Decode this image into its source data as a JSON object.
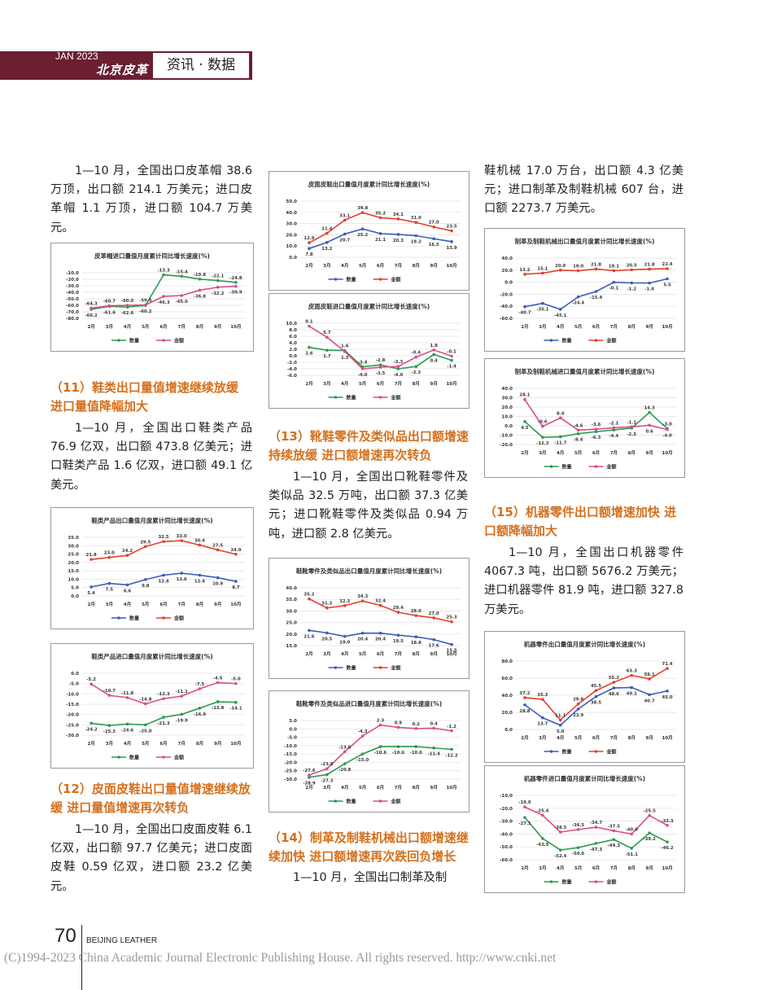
{
  "header": {
    "issue": "JAN 2023",
    "logo": "北京皮革",
    "section": "资讯 · 数据"
  },
  "left": {
    "p1": "1—10 月，全国出口皮革帽 38.6 万顶，出口额 214.1 万美元；进口皮革帽 1.1 万顶，进口额 104.7 万美元。",
    "h11": "（11）鞋类出口量值增速继续放缓 进口量值降幅加大",
    "p11": "1—10 月，全国出口鞋类产品 76.9 亿双，出口额 473.8 亿美元；进口鞋类产品 1.6 亿双，进口额 49.1 亿美元。",
    "h12": "（12）皮面皮鞋出口量值增速继续放缓 进口量值增速再次转负",
    "p12": "1—10 月，全国出口皮面皮鞋 6.1 亿双，出口额 97.7 亿美元；进口皮面皮鞋 0.59 亿双，进口额 23.2 亿美元。"
  },
  "middle": {
    "h13": "（13）靴鞋零件及类似品出口额增速持续放缓 进口额增速再次转负",
    "p13": "1—10 月，全国出口靴鞋零件及类似品 32.5 万吨，出口额 37.3 亿美元；进口靴鞋零件及类似品 0.94 万吨，进口额 2.8 亿美元。",
    "h14": "（14）制革及制鞋机械出口额增速继续加快 进口额增速再次跌回负增长",
    "p14": "1—10 月，全国出口制革及制"
  },
  "right": {
    "p14_cont": "鞋机械 17.0 万台，出口额 4.3 亿美元；进口制革及制鞋机械 607 台，进口额 2273.7 万美元。",
    "h15": "（15）机器零件出口额增速加快 进口额降幅加大",
    "p15": "1—10 月，全国出口机器零件 4067.3 吨，出口额 5676.2 万美元；进口机器零件 81.9 吨，进口额 327.8 万美元。"
  },
  "footer": {
    "page_number": "70",
    "magazine": "BEIJING LEATHER",
    "copyright": "(C)1994-2023 China Academic Journal Electronic Publishing House. All rights reserved.    http://www.cnki.net"
  },
  "chart_data": [
    {
      "id": "c1",
      "type": "line",
      "title": "皮革帽进口量值月度累计同比增长速度(%)",
      "categories": [
        "2月",
        "3月",
        "4月",
        "5月",
        "6月",
        "7月",
        "8月",
        "9月",
        "10月"
      ],
      "ylim": [
        -80,
        -10
      ],
      "ystep": 10,
      "grid": true,
      "legend": "bottom",
      "series": [
        {
          "name": "数量",
          "color": "#2e9a4f",
          "values": [
            -66.2,
            -61.6,
            -62.6,
            -60.2,
            -13.3,
            -15.4,
            -19.8,
            -22.1,
            -24.8
          ]
        },
        {
          "name": "金额",
          "color": "#d94d8a",
          "values": [
            -64.3,
            -60.7,
            -60.0,
            -59.4,
            -46.3,
            -45.0,
            -36.8,
            -32.2,
            -30.9
          ]
        }
      ]
    },
    {
      "id": "c2",
      "type": "line",
      "title": "鞋类产品出口量值月度累计同比增长速度(%)",
      "categories": [
        "2月",
        "3月",
        "4月",
        "5月",
        "6月",
        "7月",
        "8月",
        "9月",
        "10月"
      ],
      "ylim": [
        0,
        35
      ],
      "ystep": 5,
      "grid": true,
      "legend": "bottom",
      "series": [
        {
          "name": "数量",
          "color": "#3a5db8",
          "values": [
            5.4,
            7.5,
            6.6,
            9.8,
            12.4,
            13.6,
            12.4,
            10.9,
            8.7
          ]
        },
        {
          "name": "金额",
          "color": "#e5402e",
          "values": [
            21.8,
            23.0,
            24.2,
            29.5,
            32.5,
            33.0,
            30.4,
            27.5,
            24.9
          ]
        }
      ]
    },
    {
      "id": "c3",
      "type": "line",
      "title": "鞋类产品进口量值月度累计同比增长速度(%)",
      "categories": [
        "2月",
        "3月",
        "4月",
        "5月",
        "6月",
        "7月",
        "8月",
        "9月",
        "10月"
      ],
      "ylim": [
        -30,
        0
      ],
      "ystep": 5,
      "grid": true,
      "legend": "bottom",
      "series": [
        {
          "name": "数量",
          "color": "#2e9a4f",
          "values": [
            -24.2,
            -25.3,
            -24.6,
            -25.0,
            -21.3,
            -19.9,
            -16.9,
            -13.8,
            -14.1
          ]
        },
        {
          "name": "金额",
          "color": "#d94d8a",
          "values": [
            -5.2,
            -10.7,
            -11.8,
            -14.8,
            -12.3,
            -11.1,
            -7.5,
            -4.5,
            -5.0
          ]
        }
      ]
    },
    {
      "id": "c4",
      "type": "line",
      "title": "皮面皮鞋出口量值月度累计同比增长速度(%)",
      "categories": [
        "2月",
        "3月",
        "4月",
        "5月",
        "6月",
        "7月",
        "8月",
        "9月",
        "10月"
      ],
      "ylim": [
        0,
        50
      ],
      "ystep": 10,
      "grid": true,
      "legend": "bottom",
      "series": [
        {
          "name": "数量",
          "color": "#3a5db8",
          "values": [
            7.8,
            13.2,
            20.7,
            25.2,
            21.1,
            20.3,
            19.2,
            16.5,
            13.9
          ]
        },
        {
          "name": "金额",
          "color": "#e5402e",
          "values": [
            12.9,
            21.4,
            33.1,
            39.8,
            35.2,
            34.1,
            31.0,
            27.0,
            23.5
          ]
        }
      ]
    },
    {
      "id": "c5",
      "type": "line",
      "title": "皮面皮鞋进口量值月度累计同比增长速度(%)",
      "categories": [
        "2月",
        "3月",
        "4月",
        "5月",
        "6月",
        "7月",
        "8月",
        "9月",
        "10月"
      ],
      "ylim": [
        -6,
        10
      ],
      "ystep": 2,
      "grid": true,
      "legend": "bottom",
      "series": [
        {
          "name": "数量",
          "color": "#2e9a4f",
          "values": [
            2.6,
            1.7,
            1.6,
            -3.4,
            -2.8,
            -4.0,
            -3.3,
            0.4,
            -1.4
          ]
        },
        {
          "name": "金额",
          "color": "#d94d8a",
          "values": [
            9.1,
            5.7,
            1.3,
            -4.0,
            -3.5,
            -3.3,
            -0.4,
            1.8,
            -0.1
          ]
        }
      ]
    },
    {
      "id": "c6",
      "type": "line",
      "title": "鞋靴零件及类似品出口量值月度累计同比增长速度(%)",
      "categories": [
        "2月",
        "3月",
        "4月",
        "5月",
        "6月",
        "7月",
        "8月",
        "9月",
        "10月"
      ],
      "ylim": [
        15,
        40
      ],
      "ystep": 5,
      "grid": true,
      "legend": "bottom",
      "series": [
        {
          "name": "数量",
          "color": "#3a5db8",
          "values": [
            21.6,
            20.5,
            19.0,
            20.4,
            20.4,
            19.5,
            18.8,
            17.6,
            15.5
          ]
        },
        {
          "name": "金额",
          "color": "#e5402e",
          "values": [
            35.2,
            31.3,
            32.3,
            34.3,
            32.4,
            29.4,
            28.0,
            27.0,
            25.3
          ]
        }
      ]
    },
    {
      "id": "c7",
      "type": "line",
      "title": "鞋靴零件及类似品进口量值月度累计同比增长速度(%)",
      "categories": [
        "2月",
        "3月",
        "4月",
        "5月",
        "6月",
        "7月",
        "8月",
        "9月",
        "10月"
      ],
      "ylim": [
        -30,
        5
      ],
      "ystep": 5,
      "grid": true,
      "legend": "bottom",
      "series": [
        {
          "name": "数量",
          "color": "#2e9a4f",
          "values": [
            -28.9,
            -27.3,
            -20.8,
            -15.0,
            -10.6,
            -10.6,
            -10.6,
            -11.4,
            -12.2
          ]
        },
        {
          "name": "金额",
          "color": "#d94d8a",
          "values": [
            -27.6,
            -23.8,
            -13.6,
            -4.3,
            2.3,
            0.9,
            0.2,
            0.4,
            -1.2
          ]
        }
      ]
    },
    {
      "id": "c8",
      "type": "line",
      "title": "制革及制鞋机械出口量值月度累计同比增长速度(%)",
      "categories": [
        "2月",
        "3月",
        "4月",
        "5月",
        "6月",
        "7月",
        "8月",
        "9月",
        "10月"
      ],
      "ylim": [
        -60,
        40
      ],
      "ystep": 20,
      "grid": true,
      "legend": "bottom",
      "series": [
        {
          "name": "数量",
          "color": "#3a5db8",
          "values": [
            -40.7,
            -35.1,
            -45.1,
            -24.4,
            -15.4,
            -0.1,
            -1.2,
            -1.4,
            5.5
          ]
        },
        {
          "name": "金额",
          "color": "#e5402e",
          "values": [
            13.2,
            15.1,
            20.0,
            19.0,
            21.8,
            19.1,
            20.5,
            21.8,
            22.4
          ]
        }
      ]
    },
    {
      "id": "c9",
      "type": "line",
      "title": "制革及制鞋机械进口量值月度累计同比增长速度(%)",
      "categories": [
        "2月",
        "3月",
        "4月",
        "5月",
        "6月",
        "7月",
        "8月",
        "9月",
        "10月"
      ],
      "ylim": [
        -20,
        40
      ],
      "ystep": 10,
      "grid": true,
      "legend": "bottom",
      "series": [
        {
          "name": "数量",
          "color": "#2e9a4f",
          "values": [
            4.5,
            -12.3,
            -11.7,
            -8.4,
            -6.3,
            -4.4,
            -2.5,
            14.3,
            -3.0
          ]
        },
        {
          "name": "金额",
          "color": "#d94d8a",
          "values": [
            28.1,
            -0.6,
            8.4,
            -4.6,
            -3.6,
            -2.1,
            -1.1,
            0.6,
            -4.0
          ]
        }
      ]
    },
    {
      "id": "c10",
      "type": "line",
      "title": "机器零件出口量值月度累计同比增长速度(%)",
      "categories": [
        "2月",
        "3月",
        "4月",
        "5月",
        "6月",
        "7月",
        "8月",
        "9月",
        "10月"
      ],
      "ylim": [
        0,
        80
      ],
      "ystep": 20,
      "grid": true,
      "legend": "bottom",
      "series": [
        {
          "name": "数量",
          "color": "#3a5db8",
          "values": [
            28.8,
            13.7,
            5.0,
            23.9,
            38.5,
            48.6,
            49.1,
            40.7,
            45.0
          ]
        },
        {
          "name": "金额",
          "color": "#e5402e",
          "values": [
            37.2,
            35.3,
            11.1,
            29.8,
            45.5,
            55.2,
            63.3,
            59.1,
            71.4
          ]
        }
      ]
    },
    {
      "id": "c11",
      "type": "line",
      "title": "机器零件进口量值月度累计同比增长速度(%)",
      "categories": [
        "2月",
        "3月",
        "4月",
        "5月",
        "6月",
        "7月",
        "8月",
        "9月",
        "10月"
      ],
      "ylim": [
        -60,
        -10
      ],
      "ystep": 10,
      "grid": true,
      "legend": "bottom",
      "series": [
        {
          "name": "数量",
          "color": "#2e9a4f",
          "values": [
            -27.1,
            -43.5,
            -52.4,
            -50.6,
            -47.3,
            -44.3,
            -51.1,
            -39.2,
            -46.2
          ]
        },
        {
          "name": "金额",
          "color": "#d94d8a",
          "values": [
            -19.0,
            -25.4,
            -38.5,
            -36.5,
            -34.7,
            -37.5,
            -40.0,
            -25.5,
            -33.3
          ]
        }
      ]
    }
  ]
}
